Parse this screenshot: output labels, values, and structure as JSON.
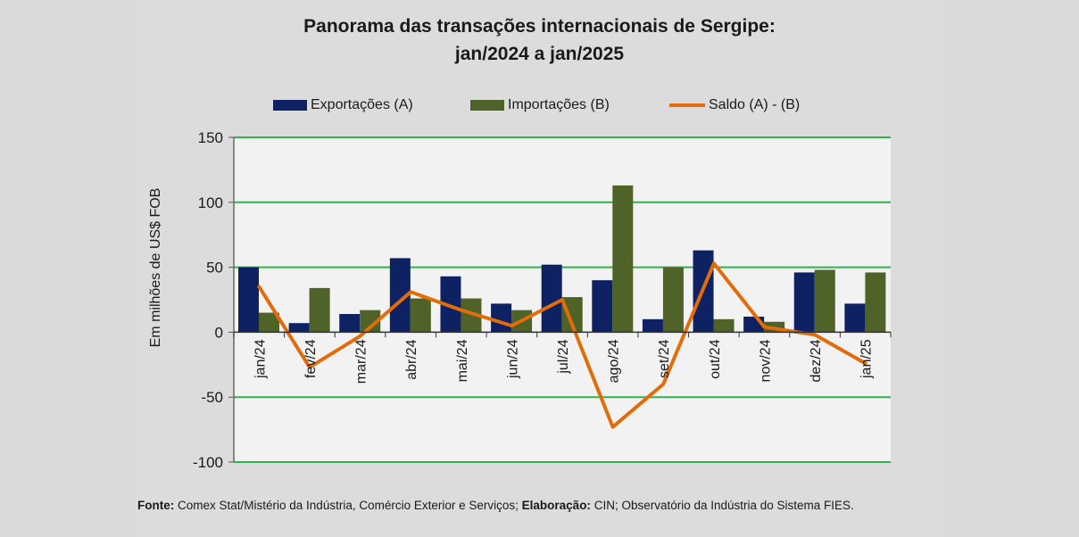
{
  "title_line1": "Panorama  das transações internacionais de Sergipe:",
  "title_line2": "jan/2024 a jan/2025",
  "legend": {
    "exports": "Exportações (A)",
    "imports": "Importações (B)",
    "balance": "Saldo (A) - (B)"
  },
  "colors": {
    "exports": "#0e2163",
    "imports": "#4f6228",
    "balance": "#e36c0a",
    "grid": "#2fb34a"
  },
  "footer": {
    "fonte_label": "Fonte:",
    "fonte_text": " Comex Stat/Mistério da Indústria, Comércio Exterior e Serviços;",
    "elab_label": "Elaboração:",
    "elab_text": " CIN; Observatório da Indústria do Sistema FIES."
  },
  "chart_data": {
    "type": "bar",
    "title": "Panorama  das transações internacionais de Sergipe: jan/2024 a jan/2025",
    "ylabel": "Em milhões de US$ FOB",
    "xlabel": "",
    "ylim": [
      -100,
      150
    ],
    "yticks": [
      150,
      100,
      50,
      0,
      -50,
      -100
    ],
    "grid": true,
    "legend_position": "top",
    "categories": [
      "jan/24",
      "fev/24",
      "mar/24",
      "abr/24",
      "mai/24",
      "jun/24",
      "jul/24",
      "ago/24",
      "set/24",
      "out/24",
      "nov/24",
      "dez/24",
      "jan/25"
    ],
    "series": [
      {
        "name": "Exportações (A)",
        "type": "bar",
        "values": [
          50,
          7,
          14,
          57,
          43,
          22,
          52,
          40,
          10,
          63,
          12,
          46,
          22
        ]
      },
      {
        "name": "Importações (B)",
        "type": "bar",
        "values": [
          15,
          34,
          17,
          26,
          26,
          17,
          27,
          113,
          50,
          10,
          8,
          48,
          46
        ]
      },
      {
        "name": "Saldo (A) - (B)",
        "type": "line",
        "values": [
          35,
          -27,
          -3,
          31,
          17,
          5,
          25,
          -73,
          -40,
          53,
          4,
          -2,
          -24
        ]
      }
    ]
  }
}
